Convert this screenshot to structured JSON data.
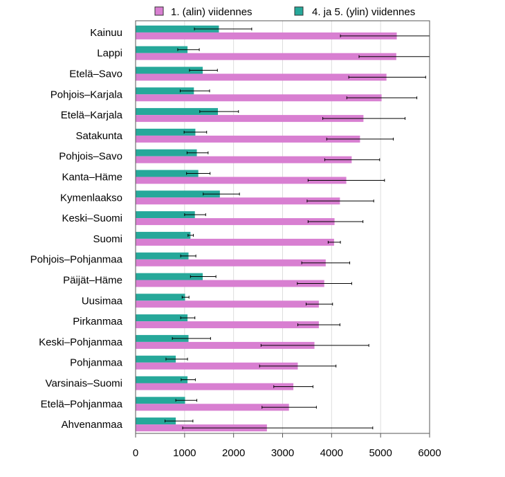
{
  "chart_data": {
    "type": "bar",
    "orientation": "horizontal",
    "categories": [
      "Kainuu",
      "Lappi",
      "Etelä–Savo",
      "Pohjois–Karjala",
      "Etelä–Karjala",
      "Satakunta",
      "Pohjois–Savo",
      "Kanta–Häme",
      "Kymenlaakso",
      "Keski–Suomi",
      "Suomi",
      "Pohjois–Pohjanmaa",
      "Päijät–Häme",
      "Uusimaa",
      "Pirkanmaa",
      "Keski–Pohjanmaa",
      "Pohjanmaa",
      "Varsinais–Suomi",
      "Etelä–Pohjanmaa",
      "Ahvenanmaa"
    ],
    "series": [
      {
        "name": "1. (alin) viidennes",
        "color": "#d87fd1",
        "values": [
          5330,
          5320,
          5120,
          5020,
          4650,
          4580,
          4410,
          4300,
          4170,
          4060,
          4050,
          3880,
          3850,
          3740,
          3740,
          3650,
          3310,
          3220,
          3130,
          2680
        ],
        "err_low": [
          4180,
          4560,
          4350,
          4310,
          3820,
          3900,
          3860,
          3520,
          3500,
          3520,
          3930,
          3390,
          3300,
          3480,
          3310,
          2560,
          2530,
          2820,
          2580,
          960
        ],
        "err_high": [
          6000,
          6000,
          5920,
          5740,
          5500,
          5260,
          4980,
          5080,
          4860,
          4640,
          4180,
          4370,
          4410,
          4020,
          4170,
          4760,
          4090,
          3620,
          3690,
          4840
        ]
      },
      {
        "name": "4. ja 5. (ylin) viidennes",
        "color": "#26a89a",
        "values": [
          1700,
          1060,
          1370,
          1190,
          1680,
          1220,
          1250,
          1280,
          1720,
          1210,
          1120,
          1080,
          1370,
          1010,
          1060,
          1080,
          820,
          1060,
          1010,
          820
        ],
        "err_low": [
          1200,
          860,
          1100,
          910,
          1310,
          990,
          1050,
          1040,
          1380,
          1000,
          1070,
          920,
          1120,
          950,
          920,
          750,
          620,
          930,
          820,
          600
        ],
        "err_high": [
          2370,
          1300,
          1670,
          1510,
          2100,
          1450,
          1480,
          1520,
          2120,
          1430,
          1180,
          1230,
          1640,
          1090,
          1210,
          1530,
          1060,
          1220,
          1250,
          1170
        ]
      }
    ],
    "xlim": [
      0,
      6000
    ],
    "xticks": [
      "0",
      "1000",
      "2000",
      "3000",
      "4000",
      "5000",
      "6000"
    ],
    "grid": true,
    "legend_position": "top",
    "xlabel": "",
    "ylabel": "",
    "title": ""
  }
}
